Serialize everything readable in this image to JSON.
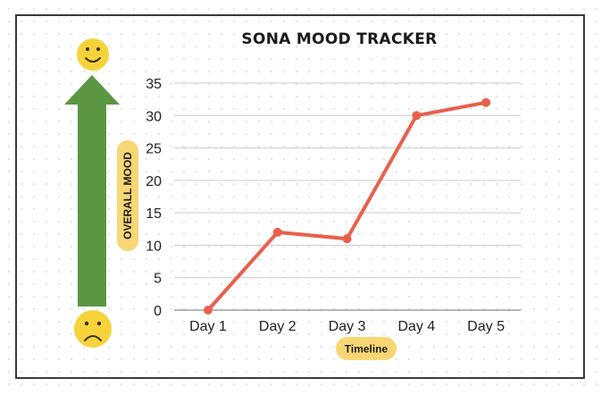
{
  "chart_data": {
    "type": "line",
    "title": "SONA MOOD TRACKER",
    "xlabel": "Timeline",
    "ylabel": "OVERALL MOOD",
    "categories": [
      "Day 1",
      "Day 2",
      "Day 3",
      "Day 4",
      "Day 5"
    ],
    "values": [
      0,
      12,
      11,
      30,
      32
    ],
    "ylim": [
      0,
      35
    ],
    "yticks": [
      0,
      5,
      10,
      15,
      20,
      25,
      30,
      35
    ],
    "grid": true,
    "line_color": "#e8604c"
  },
  "decor": {
    "arrow_color": "#5b9642",
    "label_pill_color": "#f7d774",
    "face_color": "#f6d33b",
    "top_face_icon": "happy-face-icon",
    "bottom_face_icon": "sad-face-icon"
  }
}
